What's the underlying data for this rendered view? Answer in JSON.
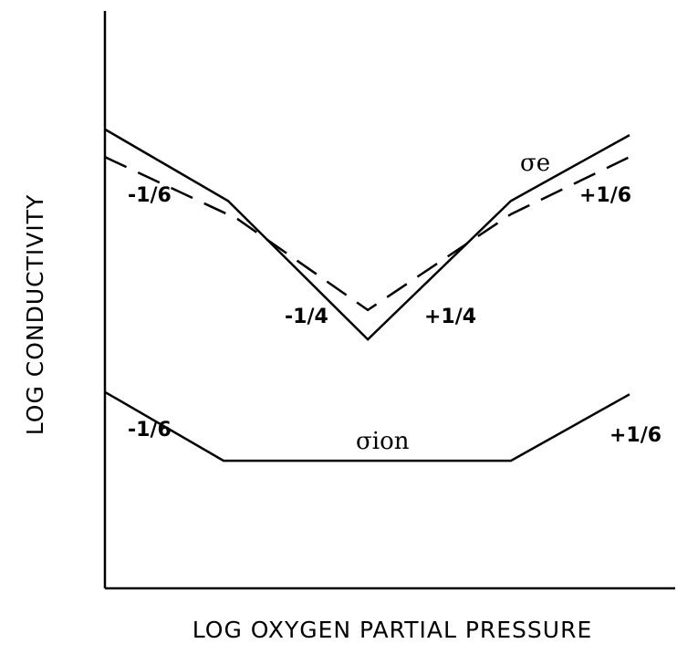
{
  "chart_data": {
    "type": "line",
    "x_label": "LOG OXYGEN PARTIAL PRESSURE",
    "y_label": "LOG CONDUCTIVITY",
    "xlim": [
      0,
      100
    ],
    "ylim": [
      0,
      100
    ],
    "series": [
      {
        "name": "σe",
        "color": "#000000",
        "dashed": false,
        "x": [
          0,
          21.6,
          46.1,
          71.2,
          92
        ],
        "values": [
          79.5,
          67.1,
          43.1,
          67.1,
          78.5
        ]
      },
      {
        "color": "#000000",
        "dashed": true,
        "x": [
          0,
          23.2,
          46.1,
          71.2,
          92
        ],
        "values": [
          74.7,
          64.0,
          48.2,
          64.8,
          74.7
        ]
      },
      {
        "name": "σion",
        "color": "#000000",
        "dashed": false,
        "x": [
          0,
          20.8,
          71.2,
          92
        ],
        "values": [
          34.0,
          22.1,
          22.1,
          33.6
        ]
      }
    ],
    "annotations": [
      "-1/6",
      "+1/6",
      "-1/4",
      "+1/4",
      "-1/6",
      "+1/6"
    ]
  }
}
